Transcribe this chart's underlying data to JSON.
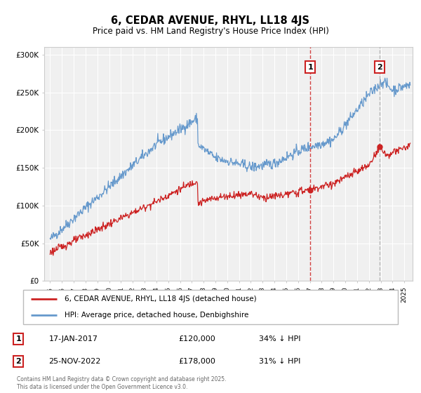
{
  "title": "6, CEDAR AVENUE, RHYL, LL18 4JS",
  "subtitle": "Price paid vs. HM Land Registry's House Price Index (HPI)",
  "background_color": "#ffffff",
  "plot_bg_color": "#f0f0f0",
  "grid_color": "#ffffff",
  "hpi_color": "#6699cc",
  "price_color": "#cc2222",
  "vline1_color": "#cc2222",
  "vline2_color": "#aaaaaa",
  "ylim": [
    0,
    310000
  ],
  "xlim_start": 1994.5,
  "xlim_end": 2025.7,
  "yticks": [
    0,
    50000,
    100000,
    150000,
    200000,
    250000,
    300000
  ],
  "ytick_labels": [
    "£0",
    "£50K",
    "£100K",
    "£150K",
    "£200K",
    "£250K",
    "£300K"
  ],
  "xticks": [
    1995,
    1996,
    1997,
    1998,
    1999,
    2000,
    2001,
    2002,
    2003,
    2004,
    2005,
    2006,
    2007,
    2008,
    2009,
    2010,
    2011,
    2012,
    2013,
    2014,
    2015,
    2016,
    2017,
    2018,
    2019,
    2020,
    2021,
    2022,
    2023,
    2024,
    2025
  ],
  "legend_label_price": "6, CEDAR AVENUE, RHYL, LL18 4JS (detached house)",
  "legend_label_hpi": "HPI: Average price, detached house, Denbighshire",
  "footer_text": "Contains HM Land Registry data © Crown copyright and database right 2025.\nThis data is licensed under the Open Government Licence v3.0.",
  "annotation1_label": "1",
  "annotation1_date": "17-JAN-2017",
  "annotation1_price_str": "£120,000",
  "annotation1_pct": "34% ↓ HPI",
  "annotation2_label": "2",
  "annotation2_date": "25-NOV-2022",
  "annotation2_price_str": "£178,000",
  "annotation2_pct": "31% ↓ HPI",
  "vline1_x": 2017.04,
  "vline2_x": 2022.9,
  "marker1_price": 120000,
  "marker2_price": 178000
}
